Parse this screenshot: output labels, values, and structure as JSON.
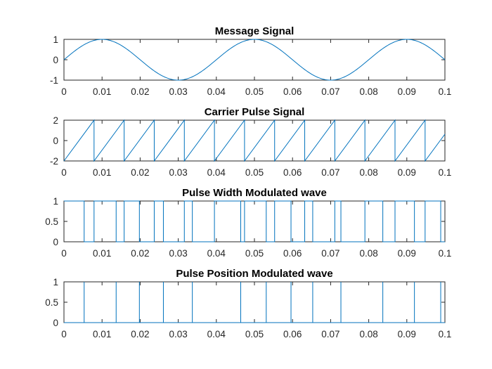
{
  "chart_data": [
    {
      "type": "line",
      "title": "Message Signal",
      "xlim": [
        0,
        0.1
      ],
      "ylim": [
        -1,
        1
      ],
      "x_ticks": [
        "0",
        "0.01",
        "0.02",
        "0.03",
        "0.04",
        "0.05",
        "0.06",
        "0.07",
        "0.08",
        "0.09",
        "0.1"
      ],
      "y_ticks": [
        "-1",
        "0",
        "1"
      ],
      "y_tick_values": [
        -1,
        0,
        1
      ],
      "grid": false,
      "series": [
        {
          "x": [
            0,
            0.005,
            0.01,
            0.015,
            0.02,
            0.025,
            0.03,
            0.035,
            0.04,
            0.045,
            0.05,
            0.055,
            0.06,
            0.065,
            0.07,
            0.075,
            0.08,
            0.085,
            0.09,
            0.095,
            0.1
          ],
          "y": [
            0,
            0.707,
            1,
            0.707,
            0,
            -0.707,
            -1,
            -0.707,
            0,
            0.707,
            1,
            0.707,
            0,
            -0.707,
            -1,
            -0.707,
            0,
            0.707,
            1,
            0.707,
            0
          ],
          "color": "#0072bd"
        }
      ]
    },
    {
      "type": "line",
      "title": "Carrier Pulse Signal",
      "xlim": [
        0,
        0.1
      ],
      "ylim": [
        -2,
        2
      ],
      "x_ticks": [
        "0",
        "0.01",
        "0.02",
        "0.03",
        "0.04",
        "0.05",
        "0.06",
        "0.07",
        "0.08",
        "0.09",
        "0.1"
      ],
      "y_ticks": [
        "-2",
        "0",
        "2"
      ],
      "y_tick_values": [
        -2,
        0,
        2
      ],
      "grid": false,
      "series": [
        {
          "x": [
            0,
            0.0079,
            0.0079,
            0.0158,
            0.0158,
            0.0237,
            0.0237,
            0.0316,
            0.0316,
            0.0395,
            0.0395,
            0.0474,
            0.0474,
            0.0553,
            0.0553,
            0.0632,
            0.0632,
            0.0711,
            0.0711,
            0.079,
            0.079,
            0.0869,
            0.0869,
            0.0948,
            0.0948,
            0.1
          ],
          "y": [
            -2,
            2,
            -2,
            2,
            -2,
            2,
            -2,
            2,
            -2,
            2,
            -2,
            2,
            -2,
            2,
            -2,
            2,
            -2,
            2,
            -2,
            2,
            -2,
            2,
            -2,
            2,
            -2,
            0.63
          ],
          "color": "#0072bd"
        }
      ]
    },
    {
      "type": "line",
      "title": "Pulse Width Modulated wave",
      "xlim": [
        0,
        0.1
      ],
      "ylim": [
        0,
        1
      ],
      "x_ticks": [
        "0",
        "0.01",
        "0.02",
        "0.03",
        "0.04",
        "0.05",
        "0.06",
        "0.07",
        "0.08",
        "0.09",
        "0.1"
      ],
      "y_ticks": [
        "0",
        "0.5",
        "1"
      ],
      "y_tick_values": [
        0,
        0.5,
        1
      ],
      "grid": false,
      "series": [
        {
          "x": [
            0,
            0.0053,
            0.0053,
            0.0079,
            0.0079,
            0.0137,
            0.0137,
            0.0158,
            0.0158,
            0.0198,
            0.0198,
            0.0237,
            0.0237,
            0.0261,
            0.0261,
            0.0316,
            0.0316,
            0.0337,
            0.0337,
            0.0395,
            0.0395,
            0.0464,
            0.0464,
            0.0474,
            0.0474,
            0.0531,
            0.0531,
            0.0553,
            0.0553,
            0.0596,
            0.0596,
            0.0632,
            0.0632,
            0.0653,
            0.0653,
            0.0711,
            0.0711,
            0.0727,
            0.0727,
            0.079,
            0.079,
            0.0837,
            0.0837,
            0.0869,
            0.0869,
            0.092,
            0.092,
            0.0948,
            0.0948,
            0.0989,
            0.0989,
            0.1
          ],
          "y": [
            1,
            1,
            0,
            0,
            1,
            1,
            0,
            0,
            1,
            1,
            0,
            0,
            1,
            1,
            0,
            0,
            1,
            1,
            0,
            0,
            1,
            1,
            0,
            0,
            1,
            1,
            0,
            0,
            1,
            1,
            0,
            0,
            1,
            1,
            0,
            0,
            1,
            1,
            0,
            0,
            1,
            1,
            0,
            0,
            1,
            1,
            0,
            0,
            1,
            1,
            0,
            0
          ],
          "color": "#0072bd"
        }
      ]
    },
    {
      "type": "line",
      "title": "Pulse Position Modulated wave",
      "xlim": [
        0,
        0.1
      ],
      "ylim": [
        0,
        1
      ],
      "x_ticks": [
        "0",
        "0.01",
        "0.02",
        "0.03",
        "0.04",
        "0.05",
        "0.06",
        "0.07",
        "0.08",
        "0.09",
        "0.1"
      ],
      "y_ticks": [
        "0",
        "0.5",
        "1"
      ],
      "y_tick_values": [
        0,
        0.5,
        1
      ],
      "grid": false,
      "pulse_positions": [
        0.0053,
        0.0137,
        0.0198,
        0.0261,
        0.0337,
        0.0464,
        0.0531,
        0.0596,
        0.0653,
        0.0727,
        0.0837,
        0.092,
        0.0989
      ],
      "series": [
        {
          "x": [],
          "y": [],
          "color": "#0072bd"
        }
      ]
    }
  ]
}
